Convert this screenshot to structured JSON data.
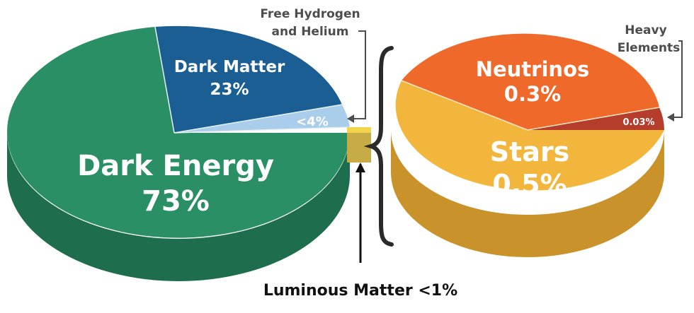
{
  "chart_data": [
    {
      "type": "pie",
      "title": "",
      "slices": [
        {
          "name": "Dark Energy",
          "label": "Dark Energy",
          "value_label": "73%",
          "value": 73,
          "color": "#2b8f66"
        },
        {
          "name": "Dark Matter",
          "label": "Dark Matter",
          "value_label": "23%",
          "value": 23,
          "color": "#1a5e93"
        },
        {
          "name": "Free Hydrogen and Helium",
          "label": "Free Hydrogen and Helium",
          "value_label": "<4%",
          "value": 4,
          "color": "#a9cdeb"
        },
        {
          "name": "Luminous Matter",
          "label": "Luminous Matter <1%",
          "value_label": "<1%",
          "value": 1,
          "color": "#f2d54a"
        }
      ]
    },
    {
      "type": "pie",
      "title": "",
      "slices": [
        {
          "name": "Neutrinos",
          "label": "Neutrinos",
          "value_label": "0.3%",
          "value": 0.3,
          "color": "#ef6a2a"
        },
        {
          "name": "Heavy Elements",
          "label": "Heavy Elements",
          "value_label": "0.03%",
          "value": 0.03,
          "color": "#b43d2c"
        },
        {
          "name": "Stars",
          "label": "Stars",
          "value_label": "0.5%",
          "value": 0.5,
          "color": "#f2b63c"
        }
      ]
    }
  ],
  "labels": {
    "dark_energy": "Dark Energy",
    "dark_energy_pct": "73%",
    "dark_matter": "Dark Matter",
    "dark_matter_pct": "23%",
    "hydrogen_pct": "<4%",
    "hydrogen_line1": "Free Hydrogen",
    "hydrogen_line2": "and Helium",
    "neutrinos": "Neutrinos",
    "neutrinos_pct": "0.3%",
    "heavy_pct": "0.03%",
    "heavy_line1": "Heavy",
    "heavy_line2": "Elements",
    "stars": "Stars",
    "stars_pct": "0.5%",
    "luminous": "Luminous Matter <1%"
  }
}
